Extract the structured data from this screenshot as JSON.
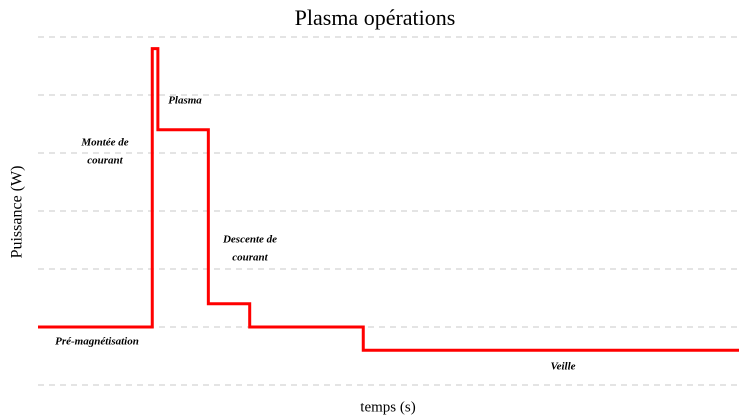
{
  "chart_data": {
    "type": "line",
    "title": "Plasma opérations",
    "xlabel": "temps (s)",
    "ylabel": "Puissance (W)",
    "xlim": [
      0,
      100
    ],
    "ylim": [
      0,
      6
    ],
    "yticks": [
      0,
      1,
      2,
      3,
      4,
      5,
      6
    ],
    "grid": true,
    "series": [
      {
        "color": "#ff0000",
        "x": [
          0,
          16.3,
          16.3,
          17.1,
          17.1,
          24.3,
          24.3,
          30.2,
          30.2,
          46.4,
          46.4,
          100
        ],
        "values": [
          1,
          1,
          5.8,
          5.8,
          4.4,
          4.4,
          1.4,
          1.4,
          1,
          1,
          0.6,
          0.6
        ]
      }
    ],
    "annotations": [
      [
        "Plasma"
      ],
      [
        "Montée de",
        "courant"
      ],
      [
        "Descente de",
        "courant"
      ],
      [
        "Pré-magnétisation"
      ],
      [
        "Veille"
      ]
    ]
  }
}
